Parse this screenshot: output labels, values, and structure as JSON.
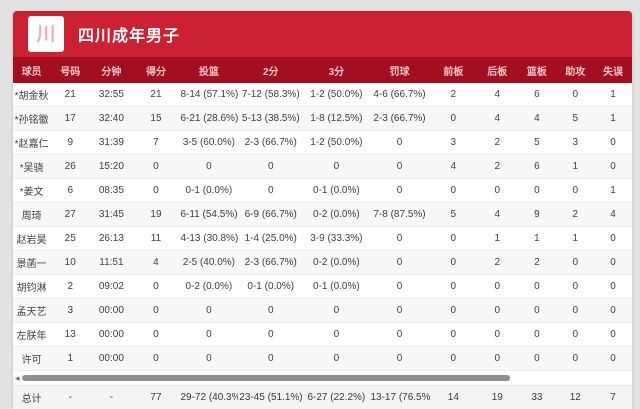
{
  "header": {
    "title": "四川成年男子",
    "banner_color": "#cb2132",
    "logo_glyph": "川"
  },
  "icons": {
    "scroll_left_arrow": "◂"
  },
  "table": {
    "header_bg": "#a30e20",
    "columns": [
      "球员",
      "号码",
      "分钟",
      "得分",
      "投篮",
      "2分",
      "3分",
      "罚球",
      "前板",
      "后板",
      "篮板",
      "助攻",
      "失误"
    ],
    "rows": [
      [
        "*胡金秋",
        "21",
        "32:55",
        "21",
        "8-14 (57.1%)",
        "7-12 (58.3%)",
        "1-2 (50.0%)",
        "4-6 (66.7%)",
        "2",
        "4",
        "6",
        "0",
        "1"
      ],
      [
        "*孙铭徽",
        "17",
        "32:40",
        "15",
        "6-21 (28.6%)",
        "5-13 (38.5%)",
        "1-8 (12.5%)",
        "2-3 (66.7%)",
        "0",
        "4",
        "4",
        "5",
        "1"
      ],
      [
        "*赵嘉仁",
        "9",
        "31:39",
        "7",
        "3-5 (60.0%)",
        "2-3 (66.7%)",
        "1-2 (50.0%)",
        "0",
        "3",
        "2",
        "5",
        "3",
        "0"
      ],
      [
        "*吴骁",
        "26",
        "15:20",
        "0",
        "0",
        "0",
        "0",
        "0",
        "4",
        "2",
        "6",
        "1",
        "0"
      ],
      [
        "*姜文",
        "6",
        "08:35",
        "0",
        "0-1 (0.0%)",
        "0",
        "0-1 (0.0%)",
        "0",
        "0",
        "0",
        "0",
        "0",
        "1"
      ],
      [
        "周琦",
        "27",
        "31:45",
        "19",
        "6-11 (54.5%)",
        "6-9 (66.7%)",
        "0-2 (0.0%)",
        "7-8 (87.5%)",
        "5",
        "4",
        "9",
        "2",
        "4"
      ],
      [
        "赵岩昊",
        "25",
        "26:13",
        "11",
        "4-13 (30.8%)",
        "1-4 (25.0%)",
        "3-9 (33.3%)",
        "0",
        "0",
        "1",
        "1",
        "1",
        "0"
      ],
      [
        "景菡一",
        "10",
        "11:51",
        "4",
        "2-5 (40.0%)",
        "2-3 (66.7%)",
        "0-2 (0.0%)",
        "0",
        "0",
        "2",
        "2",
        "0",
        "0"
      ],
      [
        "胡钧淋",
        "2",
        "09:02",
        "0",
        "0-2 (0.0%)",
        "0-1 (0.0%)",
        "0-1 (0.0%)",
        "0",
        "0",
        "0",
        "0",
        "0",
        "0"
      ],
      [
        "孟天艺",
        "3",
        "00:00",
        "0",
        "0",
        "0",
        "0",
        "0",
        "0",
        "0",
        "0",
        "0",
        "0"
      ],
      [
        "左朕年",
        "13",
        "00:00",
        "0",
        "0",
        "0",
        "0",
        "0",
        "0",
        "0",
        "0",
        "0",
        "0"
      ],
      [
        "许可",
        "1",
        "00:00",
        "0",
        "0",
        "0",
        "0",
        "0",
        "0",
        "0",
        "0",
        "0",
        "0"
      ]
    ],
    "total": [
      "总计",
      "-",
      "-",
      "77",
      "29-72 (40.3%)",
      "23-45 (51.1%)",
      "6-27 (22.2%)",
      "13-17 (76.5%)",
      "14",
      "19",
      "33",
      "12",
      "7"
    ]
  }
}
